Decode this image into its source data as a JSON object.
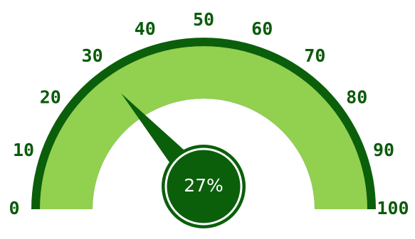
{
  "gauge": {
    "min": 0,
    "max": 100,
    "value": 27,
    "readout": "27%",
    "tick_labels": [
      "0",
      "10",
      "20",
      "30",
      "40",
      "50",
      "60",
      "70",
      "80",
      "90",
      "100"
    ],
    "colors": {
      "outer_ring": "#0b5f0b",
      "band": "#92d050",
      "hub": "#0b5f0b",
      "hub_ring": "#ffffff",
      "tick_text": "#0b5a0b",
      "readout_text": "#ffffff"
    }
  }
}
